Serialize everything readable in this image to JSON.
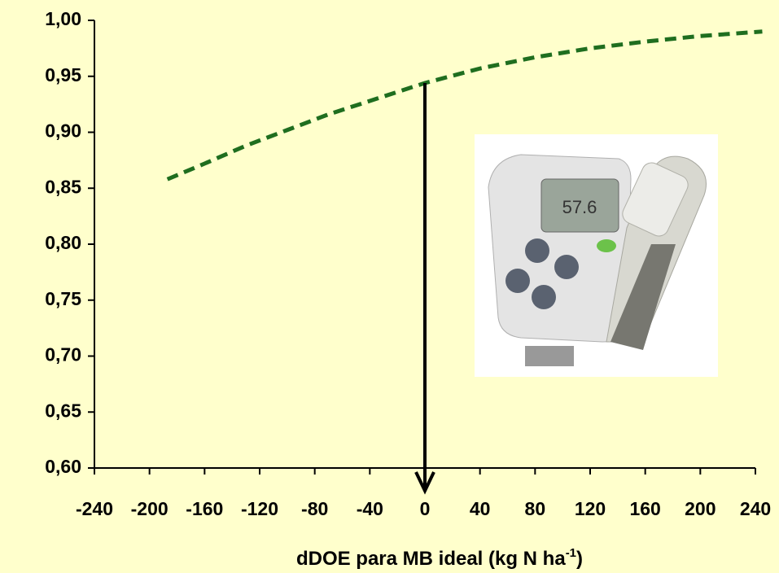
{
  "chart_data": {
    "type": "line",
    "xlabel": {
      "text": "dDOE para MB ideal (kg N ha",
      "superscript": "-1",
      "suffix": ")"
    },
    "series": [
      {
        "color": "#1f6e1f",
        "style": "dashed",
        "x": [
          -187,
          -160,
          -130,
          -100,
          -70,
          -40,
          -20,
          0,
          40,
          80,
          120,
          160,
          200,
          245
        ],
        "values": [
          0.858,
          0.872,
          0.888,
          0.902,
          0.916,
          0.928,
          0.936,
          0.944,
          0.957,
          0.967,
          0.975,
          0.981,
          0.986,
          0.99
        ]
      }
    ],
    "xlim": [
      -240,
      240
    ],
    "xticks": [
      -240,
      -200,
      -160,
      -120,
      -80,
      -40,
      0,
      40,
      80,
      120,
      160,
      200,
      240
    ],
    "ylim": [
      0.6,
      1.0
    ],
    "yticks": [
      {
        "value": 0.6,
        "label": "0,60"
      },
      {
        "value": 0.65,
        "label": "0,65"
      },
      {
        "value": 0.7,
        "label": "0,70"
      },
      {
        "value": 0.75,
        "label": "0,75"
      },
      {
        "value": 0.8,
        "label": "0,80"
      },
      {
        "value": 0.85,
        "label": "0,85"
      },
      {
        "value": 0.9,
        "label": "0,90"
      },
      {
        "value": 0.95,
        "label": "0,95"
      },
      {
        "value": 1.0,
        "label": "1,00"
      }
    ],
    "grid": false,
    "arrow_at_x": 0
  }
}
